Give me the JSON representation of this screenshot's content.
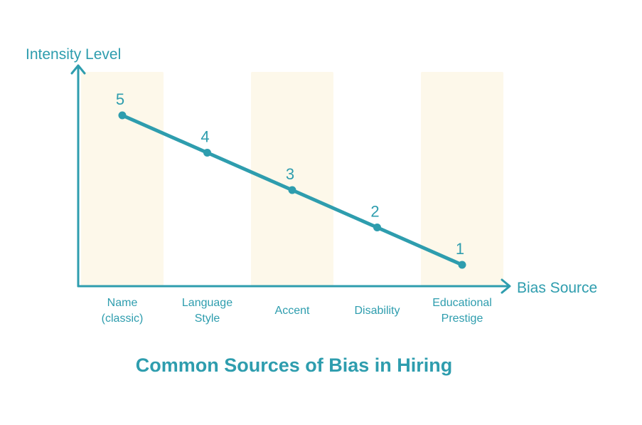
{
  "chart_data": {
    "type": "line",
    "title": "Common Sources of Bias in Hiring",
    "xlabel": "Bias Source",
    "ylabel": "Intensity Level",
    "categories": [
      "Name (classic)",
      "Language Style",
      "Accent",
      "Disability",
      "Educational Prestige"
    ],
    "category_label_lines": [
      [
        "Name",
        "(classic)"
      ],
      [
        "Language",
        "Style"
      ],
      [
        "Accent"
      ],
      [
        "Disability"
      ],
      [
        "Educational",
        "Prestige"
      ]
    ],
    "values": [
      5,
      4,
      3,
      2,
      1
    ],
    "point_labels": [
      "5",
      "4",
      "3",
      "2",
      "1"
    ],
    "ylim": [
      0,
      5
    ],
    "grid": false,
    "legend": null,
    "axis_arrows": true,
    "highlight_band_indices": [
      0,
      2,
      4
    ],
    "colors": {
      "accent_teal": "#2E9DAE",
      "band_cream": "#FDF8EA",
      "background": "#FFFFFF"
    }
  }
}
